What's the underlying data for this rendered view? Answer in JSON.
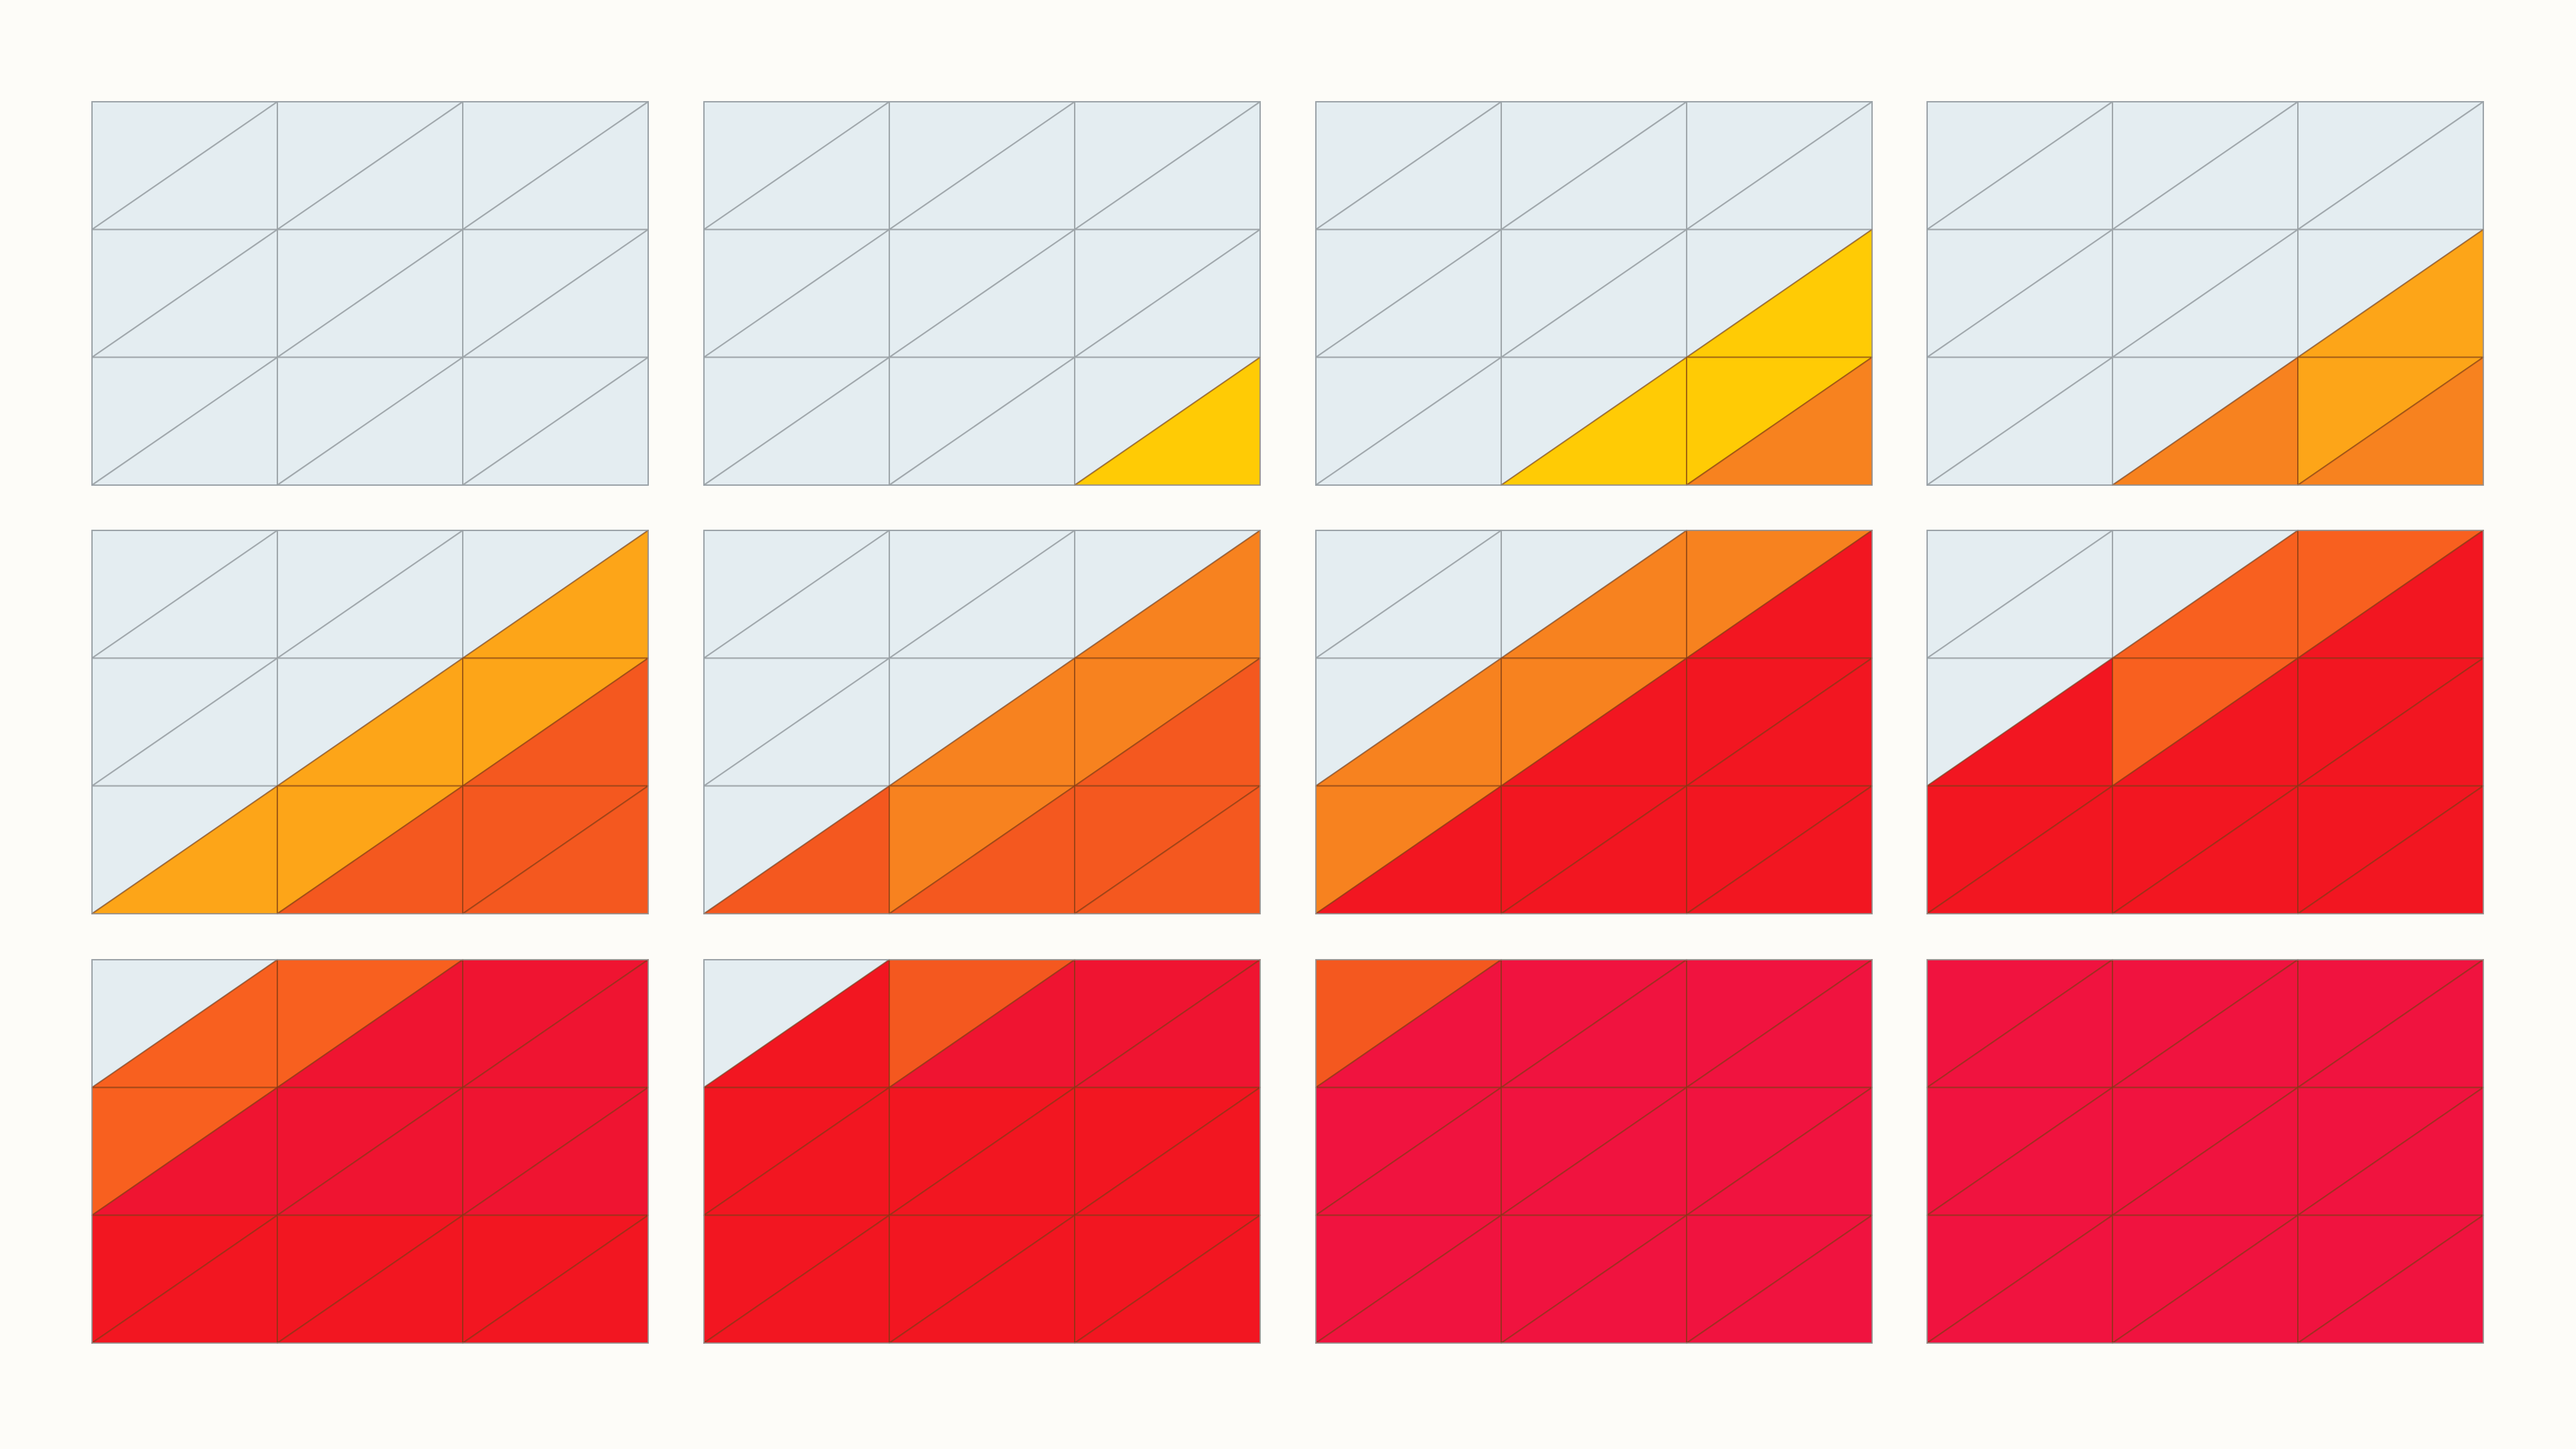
{
  "panel_grid": {
    "rows": 3,
    "columns": 4
  },
  "tile_grid": {
    "rows": 3,
    "columns": 3,
    "triangles_per_cell": 2
  },
  "colors": {
    "background": "#fdfcf8",
    "empty": "#e4edf1",
    "yellow": "#ffcb05",
    "amber": "#fda518",
    "orange": "#f7821f",
    "deep_orange": "#f4581f",
    "vermilion": "#f8601f",
    "red": "#f21621",
    "crimson": "#ef1431",
    "rose": "#f0133f",
    "line_on_empty": "#9aa1a6",
    "line_on_color": "#7a3a12"
  },
  "panels": [
    {
      "step": 1,
      "fills": []
    },
    {
      "step": 2,
      "fills": [
        {
          "row": 2,
          "col": 2,
          "tri": "lower",
          "color": "yellow"
        }
      ]
    },
    {
      "step": 3,
      "fills": [
        {
          "row": 1,
          "col": 2,
          "tri": "lower",
          "color": "yellow"
        },
        {
          "row": 2,
          "col": 1,
          "tri": "lower",
          "color": "yellow"
        },
        {
          "row": 2,
          "col": 2,
          "tri": "upper",
          "color": "yellow"
        },
        {
          "row": 2,
          "col": 2,
          "tri": "lower",
          "color": "orange"
        }
      ]
    },
    {
      "step": 4,
      "fills": [
        {
          "row": 1,
          "col": 2,
          "tri": "lower",
          "color": "amber"
        },
        {
          "row": 2,
          "col": 1,
          "tri": "lower",
          "color": "orange"
        },
        {
          "row": 2,
          "col": 2,
          "tri": "upper",
          "color": "amber"
        },
        {
          "row": 2,
          "col": 2,
          "tri": "lower",
          "color": "orange"
        }
      ]
    },
    {
      "step": 5,
      "fills": [
        {
          "row": 0,
          "col": 2,
          "tri": "lower",
          "color": "amber"
        },
        {
          "row": 1,
          "col": 1,
          "tri": "lower",
          "color": "amber"
        },
        {
          "row": 1,
          "col": 2,
          "tri": "upper",
          "color": "amber"
        },
        {
          "row": 1,
          "col": 2,
          "tri": "lower",
          "color": "deep_orange"
        },
        {
          "row": 2,
          "col": 0,
          "tri": "lower",
          "color": "amber"
        },
        {
          "row": 2,
          "col": 1,
          "tri": "upper",
          "color": "amber"
        },
        {
          "row": 2,
          "col": 1,
          "tri": "lower",
          "color": "deep_orange"
        },
        {
          "row": 2,
          "col": 2,
          "tri": "upper",
          "color": "deep_orange"
        },
        {
          "row": 2,
          "col": 2,
          "tri": "lower",
          "color": "deep_orange"
        }
      ]
    },
    {
      "step": 6,
      "fills": [
        {
          "row": 0,
          "col": 2,
          "tri": "lower",
          "color": "orange"
        },
        {
          "row": 1,
          "col": 1,
          "tri": "lower",
          "color": "orange"
        },
        {
          "row": 1,
          "col": 2,
          "tri": "upper",
          "color": "orange"
        },
        {
          "row": 1,
          "col": 2,
          "tri": "lower",
          "color": "deep_orange"
        },
        {
          "row": 2,
          "col": 0,
          "tri": "lower",
          "color": "deep_orange"
        },
        {
          "row": 2,
          "col": 1,
          "tri": "upper",
          "color": "orange"
        },
        {
          "row": 2,
          "col": 1,
          "tri": "lower",
          "color": "deep_orange"
        },
        {
          "row": 2,
          "col": 2,
          "tri": "upper",
          "color": "deep_orange"
        },
        {
          "row": 2,
          "col": 2,
          "tri": "lower",
          "color": "deep_orange"
        }
      ]
    },
    {
      "step": 7,
      "fills": [
        {
          "row": 0,
          "col": 1,
          "tri": "lower",
          "color": "orange"
        },
        {
          "row": 0,
          "col": 2,
          "tri": "upper",
          "color": "orange"
        },
        {
          "row": 0,
          "col": 2,
          "tri": "lower",
          "color": "red"
        },
        {
          "row": 1,
          "col": 0,
          "tri": "lower",
          "color": "orange"
        },
        {
          "row": 1,
          "col": 1,
          "tri": "upper",
          "color": "orange"
        },
        {
          "row": 1,
          "col": 1,
          "tri": "lower",
          "color": "red"
        },
        {
          "row": 1,
          "col": 2,
          "tri": "upper",
          "color": "red"
        },
        {
          "row": 1,
          "col": 2,
          "tri": "lower",
          "color": "red"
        },
        {
          "row": 2,
          "col": 0,
          "tri": "upper",
          "color": "orange"
        },
        {
          "row": 2,
          "col": 0,
          "tri": "lower",
          "color": "red"
        },
        {
          "row": 2,
          "col": 1,
          "tri": "upper",
          "color": "red"
        },
        {
          "row": 2,
          "col": 1,
          "tri": "lower",
          "color": "red"
        },
        {
          "row": 2,
          "col": 2,
          "tri": "upper",
          "color": "red"
        },
        {
          "row": 2,
          "col": 2,
          "tri": "lower",
          "color": "red"
        }
      ]
    },
    {
      "step": 8,
      "fills": [
        {
          "row": 0,
          "col": 1,
          "tri": "lower",
          "color": "vermilion"
        },
        {
          "row": 0,
          "col": 2,
          "tri": "upper",
          "color": "vermilion"
        },
        {
          "row": 0,
          "col": 2,
          "tri": "lower",
          "color": "red"
        },
        {
          "row": 1,
          "col": 0,
          "tri": "lower",
          "color": "red"
        },
        {
          "row": 1,
          "col": 1,
          "tri": "upper",
          "color": "vermilion"
        },
        {
          "row": 1,
          "col": 1,
          "tri": "lower",
          "color": "red"
        },
        {
          "row": 1,
          "col": 2,
          "tri": "upper",
          "color": "red"
        },
        {
          "row": 1,
          "col": 2,
          "tri": "lower",
          "color": "red"
        },
        {
          "row": 2,
          "col": 0,
          "tri": "upper",
          "color": "red"
        },
        {
          "row": 2,
          "col": 0,
          "tri": "lower",
          "color": "red"
        },
        {
          "row": 2,
          "col": 1,
          "tri": "upper",
          "color": "red"
        },
        {
          "row": 2,
          "col": 1,
          "tri": "lower",
          "color": "red"
        },
        {
          "row": 2,
          "col": 2,
          "tri": "upper",
          "color": "red"
        },
        {
          "row": 2,
          "col": 2,
          "tri": "lower",
          "color": "red"
        }
      ]
    },
    {
      "step": 9,
      "fills": [
        {
          "row": 0,
          "col": 0,
          "tri": "lower",
          "color": "vermilion"
        },
        {
          "row": 0,
          "col": 1,
          "tri": "upper",
          "color": "vermilion"
        },
        {
          "row": 0,
          "col": 1,
          "tri": "lower",
          "color": "crimson"
        },
        {
          "row": 0,
          "col": 2,
          "tri": "upper",
          "color": "crimson"
        },
        {
          "row": 0,
          "col": 2,
          "tri": "lower",
          "color": "crimson"
        },
        {
          "row": 1,
          "col": 0,
          "tri": "upper",
          "color": "vermilion"
        },
        {
          "row": 1,
          "col": 0,
          "tri": "lower",
          "color": "crimson"
        },
        {
          "row": 1,
          "col": 1,
          "tri": "upper",
          "color": "crimson"
        },
        {
          "row": 1,
          "col": 1,
          "tri": "lower",
          "color": "crimson"
        },
        {
          "row": 1,
          "col": 2,
          "tri": "upper",
          "color": "crimson"
        },
        {
          "row": 1,
          "col": 2,
          "tri": "lower",
          "color": "crimson"
        },
        {
          "row": 2,
          "col": 0,
          "tri": "upper",
          "color": "red"
        },
        {
          "row": 2,
          "col": 0,
          "tri": "lower",
          "color": "red"
        },
        {
          "row": 2,
          "col": 1,
          "tri": "upper",
          "color": "red"
        },
        {
          "row": 2,
          "col": 1,
          "tri": "lower",
          "color": "red"
        },
        {
          "row": 2,
          "col": 2,
          "tri": "upper",
          "color": "red"
        },
        {
          "row": 2,
          "col": 2,
          "tri": "lower",
          "color": "red"
        }
      ]
    },
    {
      "step": 10,
      "fills": [
        {
          "row": 0,
          "col": 0,
          "tri": "lower",
          "color": "red"
        },
        {
          "row": 0,
          "col": 1,
          "tri": "upper",
          "color": "deep_orange"
        },
        {
          "row": 0,
          "col": 1,
          "tri": "lower",
          "color": "crimson"
        },
        {
          "row": 0,
          "col": 2,
          "tri": "upper",
          "color": "crimson"
        },
        {
          "row": 0,
          "col": 2,
          "tri": "lower",
          "color": "crimson"
        },
        {
          "row": 1,
          "col": 0,
          "tri": "upper",
          "color": "red"
        },
        {
          "row": 1,
          "col": 0,
          "tri": "lower",
          "color": "red"
        },
        {
          "row": 1,
          "col": 1,
          "tri": "upper",
          "color": "red"
        },
        {
          "row": 1,
          "col": 1,
          "tri": "lower",
          "color": "red"
        },
        {
          "row": 1,
          "col": 2,
          "tri": "upper",
          "color": "red"
        },
        {
          "row": 1,
          "col": 2,
          "tri": "lower",
          "color": "red"
        },
        {
          "row": 2,
          "col": 0,
          "tri": "upper",
          "color": "red"
        },
        {
          "row": 2,
          "col": 0,
          "tri": "lower",
          "color": "red"
        },
        {
          "row": 2,
          "col": 1,
          "tri": "upper",
          "color": "red"
        },
        {
          "row": 2,
          "col": 1,
          "tri": "lower",
          "color": "red"
        },
        {
          "row": 2,
          "col": 2,
          "tri": "upper",
          "color": "red"
        },
        {
          "row": 2,
          "col": 2,
          "tri": "lower",
          "color": "red"
        }
      ]
    },
    {
      "step": 11,
      "fills": [
        {
          "row": 0,
          "col": 0,
          "tri": "upper",
          "color": "deep_orange"
        },
        {
          "row": 0,
          "col": 0,
          "tri": "lower",
          "color": "rose"
        },
        {
          "row": 0,
          "col": 1,
          "tri": "upper",
          "color": "rose"
        },
        {
          "row": 0,
          "col": 1,
          "tri": "lower",
          "color": "rose"
        },
        {
          "row": 0,
          "col": 2,
          "tri": "upper",
          "color": "rose"
        },
        {
          "row": 0,
          "col": 2,
          "tri": "lower",
          "color": "rose"
        },
        {
          "row": 1,
          "col": 0,
          "tri": "upper",
          "color": "rose"
        },
        {
          "row": 1,
          "col": 0,
          "tri": "lower",
          "color": "rose"
        },
        {
          "row": 1,
          "col": 1,
          "tri": "upper",
          "color": "rose"
        },
        {
          "row": 1,
          "col": 1,
          "tri": "lower",
          "color": "rose"
        },
        {
          "row": 1,
          "col": 2,
          "tri": "upper",
          "color": "rose"
        },
        {
          "row": 1,
          "col": 2,
          "tri": "lower",
          "color": "rose"
        },
        {
          "row": 2,
          "col": 0,
          "tri": "upper",
          "color": "rose"
        },
        {
          "row": 2,
          "col": 0,
          "tri": "lower",
          "color": "rose"
        },
        {
          "row": 2,
          "col": 1,
          "tri": "upper",
          "color": "rose"
        },
        {
          "row": 2,
          "col": 1,
          "tri": "lower",
          "color": "rose"
        },
        {
          "row": 2,
          "col": 2,
          "tri": "upper",
          "color": "rose"
        },
        {
          "row": 2,
          "col": 2,
          "tri": "lower",
          "color": "rose"
        }
      ]
    },
    {
      "step": 12,
      "fill_all": "rose"
    }
  ]
}
